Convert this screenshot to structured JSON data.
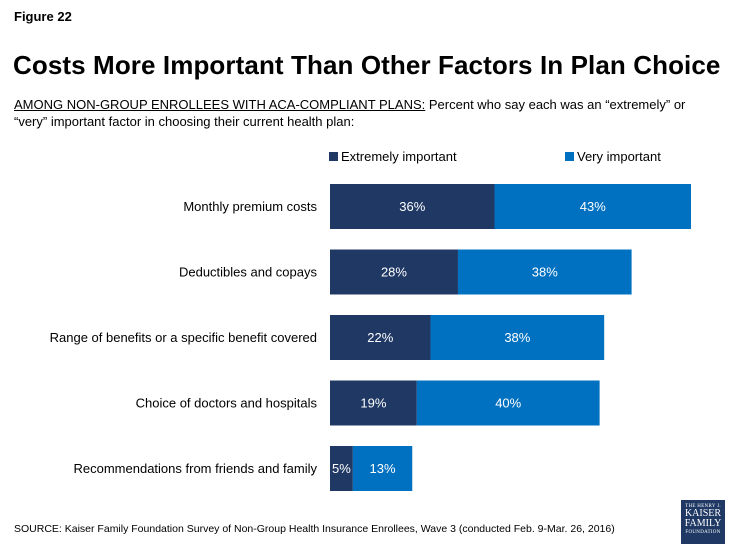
{
  "figure_label": "Figure 22",
  "colors": {
    "extremely": "#1f3864",
    "very": "#0070c0",
    "text": "#000000"
  },
  "chart_data": {
    "type": "bar",
    "orientation": "horizontal",
    "stacked": true,
    "title": "Costs More Important Than Other Factors In Plan Choice",
    "subtitle_lead": "AMONG NON-GROUP ENROLLEES WITH ACA-COMPLIANT PLANS:",
    "subtitle_rest": " Percent who say each was an “extremely” or “very” important factor in choosing their current health plan:",
    "categories": [
      "Monthly premium costs",
      "Deductibles and copays",
      "Range of benefits or a specific benefit covered",
      "Choice of doctors and hospitals",
      "Recommendations from friends and family"
    ],
    "series": [
      {
        "name": "Extremely important",
        "values": [
          36,
          28,
          22,
          19,
          5
        ],
        "labels": [
          "36%",
          "28%",
          "22%",
          "19%",
          "5%"
        ]
      },
      {
        "name": "Very important",
        "values": [
          43,
          38,
          38,
          40,
          13
        ],
        "labels": [
          "43%",
          "38%",
          "38%",
          "40%",
          "13%"
        ]
      }
    ],
    "unit": "%",
    "xlim": [
      0,
      79
    ],
    "legend_position": "top",
    "grid": false
  },
  "source": "SOURCE: Kaiser Family Foundation Survey of Non-Group Health Insurance Enrollees, Wave 3 (conducted Feb. 9-Mar. 26, 2016)",
  "logo": {
    "line1": "THE HENRY J.",
    "line2": "KAISER",
    "line3": "FAMILY",
    "line4": "FOUNDATION"
  }
}
